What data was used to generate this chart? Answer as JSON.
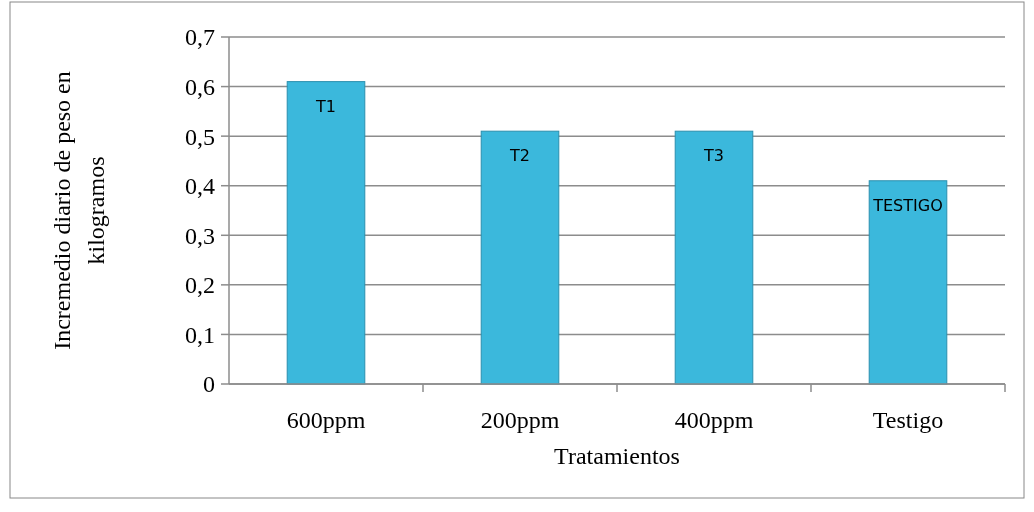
{
  "chart_data": {
    "type": "bar",
    "xlabel": "Tratamientos",
    "ylabel": "Incremedio diario de peso en kilogramos",
    "categories": [
      "600ppm",
      "200ppm",
      "400ppm",
      "Testigo"
    ],
    "values": [
      0.61,
      0.51,
      0.51,
      0.41
    ],
    "color": "#3bb8dc",
    "ylim": [
      0,
      0.7
    ],
    "yticks": [
      0,
      {
        "value": 0.1,
        "label": "0,1"
      },
      {
        "value": 0.2,
        "label": "0,2"
      },
      {
        "value": 0.3,
        "label": "0,3"
      },
      {
        "value": 0.4,
        "label": "0,4"
      },
      {
        "value": 0.5,
        "label": "0,5"
      },
      {
        "value": 0.6,
        "label": "0,6"
      },
      {
        "value": 0.7,
        "label": "0,7"
      }
    ],
    "grid": "y",
    "annotations": [
      {
        "text": "T1",
        "x": "600ppm",
        "y": 0.61
      },
      {
        "text": "T2",
        "x": "200ppm",
        "y": 0.51
      },
      {
        "text": "T3",
        "x": "400ppm",
        "y": 0.51
      },
      {
        "text": "TESTIGO",
        "x": "Testigo",
        "y": 0.41
      }
    ]
  }
}
